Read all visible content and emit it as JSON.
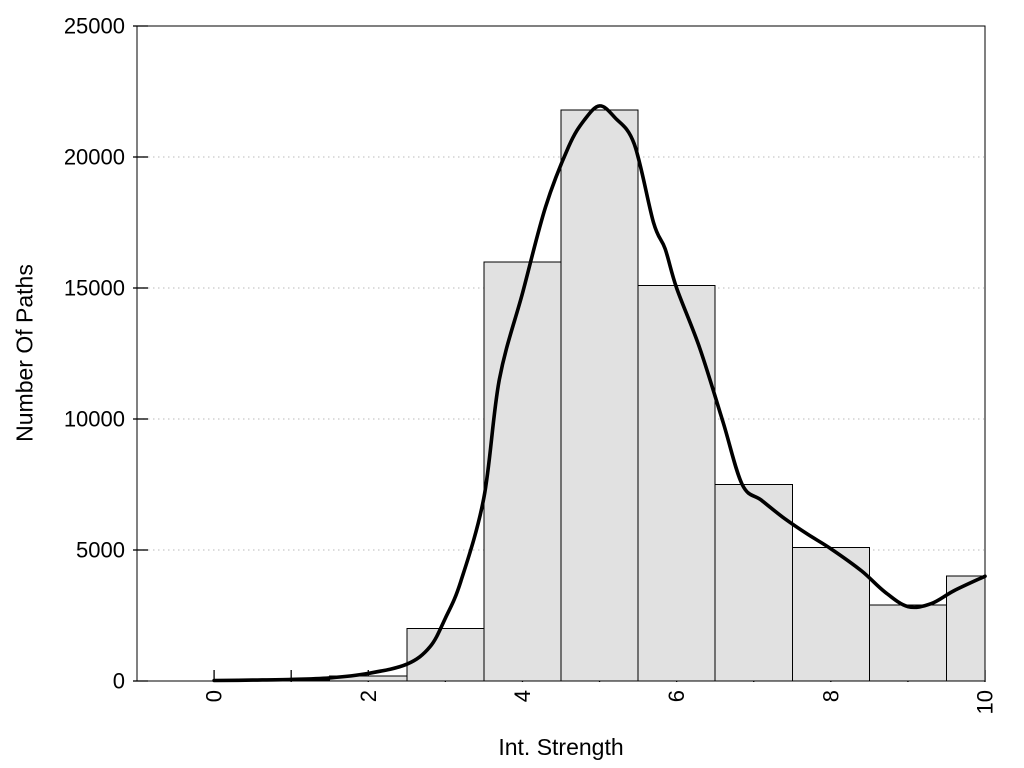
{
  "chart_data": {
    "type": "bar",
    "subtype": "histogram-with-density-curve",
    "title": "",
    "xlabel": "Int. Strength",
    "ylabel": "Number Of Paths",
    "xlim": [
      -1,
      10
    ],
    "ylim": [
      0,
      25000
    ],
    "grid": "horizontal-dotted",
    "legend": "none",
    "x_ticks": {
      "positions": [
        0,
        1,
        2,
        3,
        4,
        5,
        6,
        7,
        8,
        9,
        10
      ],
      "labels": [
        {
          "value": 0,
          "text": "0"
        },
        {
          "value": 2,
          "text": "2"
        },
        {
          "value": 4,
          "text": "4"
        },
        {
          "value": 6,
          "text": "6"
        },
        {
          "value": 8,
          "text": "8"
        },
        {
          "value": 10,
          "text": "10"
        }
      ],
      "label_rotation_deg": -90
    },
    "y_ticks": {
      "positions": [
        0,
        5000,
        10000,
        15000,
        20000,
        25000
      ],
      "labels": [
        {
          "value": 0,
          "text": "0"
        },
        {
          "value": 5000,
          "text": "5000"
        },
        {
          "value": 10000,
          "text": "10000"
        },
        {
          "value": 15000,
          "text": "15000"
        },
        {
          "value": 20000,
          "text": "20000"
        },
        {
          "value": 25000,
          "text": "25000"
        }
      ]
    },
    "gridlines_y": [
      5000,
      10000,
      15000,
      20000
    ],
    "bars": {
      "bin_width": 1,
      "clip_xmax": 10,
      "centers": [
        1,
        2,
        3,
        4,
        5,
        6,
        7,
        8,
        9,
        10
      ],
      "values": [
        30,
        200,
        2000,
        16000,
        21800,
        15100,
        7500,
        5100,
        2900,
        4000
      ]
    },
    "curve": {
      "name": "density-fit",
      "points": [
        [
          0,
          20
        ],
        [
          0.5,
          35
        ],
        [
          1,
          60
        ],
        [
          1.5,
          120
        ],
        [
          2,
          290
        ],
        [
          2.5,
          640
        ],
        [
          2.8,
          1300
        ],
        [
          3,
          2400
        ],
        [
          3.2,
          3800
        ],
        [
          3.5,
          7000
        ],
        [
          3.7,
          11500
        ],
        [
          4,
          14800
        ],
        [
          4.3,
          18100
        ],
        [
          4.6,
          20400
        ],
        [
          4.8,
          21400
        ],
        [
          5,
          21950
        ],
        [
          5.2,
          21500
        ],
        [
          5.45,
          20500
        ],
        [
          5.7,
          17500
        ],
        [
          5.85,
          16500
        ],
        [
          6,
          15000
        ],
        [
          6.3,
          12700
        ],
        [
          6.6,
          9900
        ],
        [
          6.85,
          7500
        ],
        [
          7.1,
          6900
        ],
        [
          7.4,
          6200
        ],
        [
          7.7,
          5600
        ],
        [
          8,
          5050
        ],
        [
          8.4,
          4200
        ],
        [
          8.7,
          3400
        ],
        [
          9,
          2840
        ],
        [
          9.3,
          2950
        ],
        [
          9.6,
          3450
        ],
        [
          10,
          4000
        ]
      ]
    },
    "colors": {
      "background": "#ffffff",
      "bar_fill": "#e1e1e1",
      "bar_border": "#000000",
      "curve": "#000000",
      "grid": "#c8c8c8",
      "frame": "#000000",
      "text": "#000000"
    }
  }
}
